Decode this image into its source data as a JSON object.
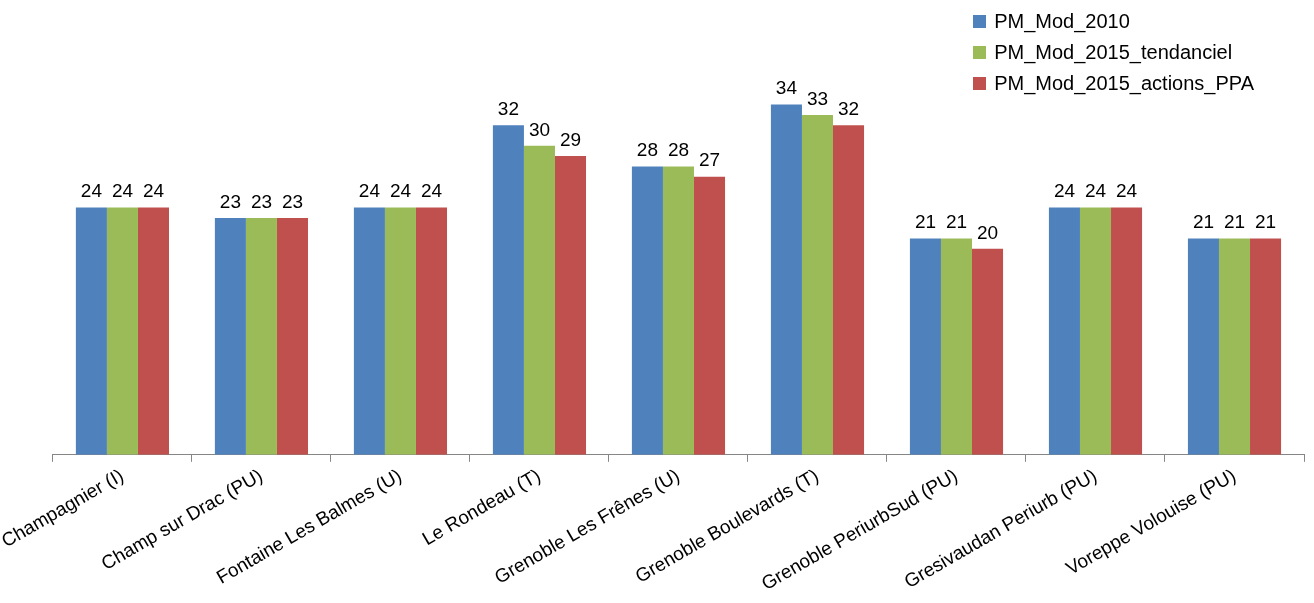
{
  "chart_data": {
    "type": "bar",
    "categories": [
      "Champagnier (I)",
      "Champ sur Drac (PU)",
      "Fontaine Les Balmes (U)",
      "Le Rondeau (T)",
      "Grenoble Les Frênes (U)",
      "Grenoble Boulevards (T)",
      "Grenoble PeriurbSud (PU)",
      "Gresivaudan Periurb (PU)",
      "Voreppe Volouise (PU)"
    ],
    "series": [
      {
        "name": "PM_Mod_2010",
        "color": "#4f81bd",
        "values": [
          24,
          23,
          24,
          32,
          28,
          34,
          21,
          24,
          21
        ]
      },
      {
        "name": "PM_Mod_2015_tendanciel",
        "color": "#9bbb59",
        "values": [
          24,
          23,
          24,
          30,
          28,
          33,
          21,
          24,
          21
        ]
      },
      {
        "name": "PM_Mod_2015_actions_PPA",
        "color": "#c0504d",
        "values": [
          24,
          23,
          24,
          29,
          27,
          32,
          20,
          24,
          21
        ]
      }
    ],
    "data_labels": true,
    "legend": "top right"
  }
}
